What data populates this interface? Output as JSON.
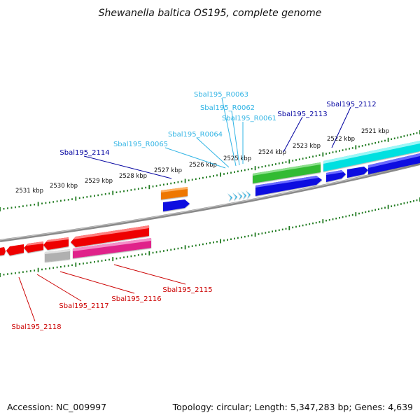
{
  "title": "Shewanella baltica OS195, complete genome",
  "footer": {
    "accession": "Accession: NC_009997",
    "summary": "Topology: circular; Length: 5,347,283 bp; Genes: 4,639"
  },
  "colors": {
    "backbone": "#808080",
    "tick": "#1f7a1f",
    "label_blue": "#0000a0",
    "label_cyan": "#33b5e5",
    "label_red": "#cc0000",
    "gene_blue": "#0a0ae0",
    "gene_green": "#33bb33",
    "gene_cyan": "#00e5e5",
    "gene_red": "#ee0000",
    "gene_magenta": "#e0208a",
    "gene_orange": "#ee7700",
    "gene_gray": "#b0b0b0",
    "rna_cyan": "#33b5e5"
  },
  "kbp_ticks": [
    "2521 kbp",
    "2522 kbp",
    "2523 kbp",
    "2524 kbp",
    "2525 kbp",
    "2526 kbp",
    "2527 kbp",
    "2528 kbp",
    "2529 kbp",
    "2530 kbp",
    "2531 kbp"
  ],
  "gene_labels": {
    "sbal195_2112": "Sbal195_2112",
    "sbal195_2113": "Sbal195_2113",
    "sbal195_r0061": "Sbal195_R0061",
    "sbal195_r0062": "Sbal195_R0062",
    "sbal195_r0063": "Sbal195_R0063",
    "sbal195_r0064": "Sbal195_R0064",
    "sbal195_r0065": "Sbal195_R0065",
    "sbal195_2114": "Sbal195_2114",
    "sbal195_2115": "Sbal195_2115",
    "sbal195_2116": "Sbal195_2116",
    "sbal195_2117": "Sbal195_2117",
    "sbal195_2118": "Sbal195_2118"
  }
}
